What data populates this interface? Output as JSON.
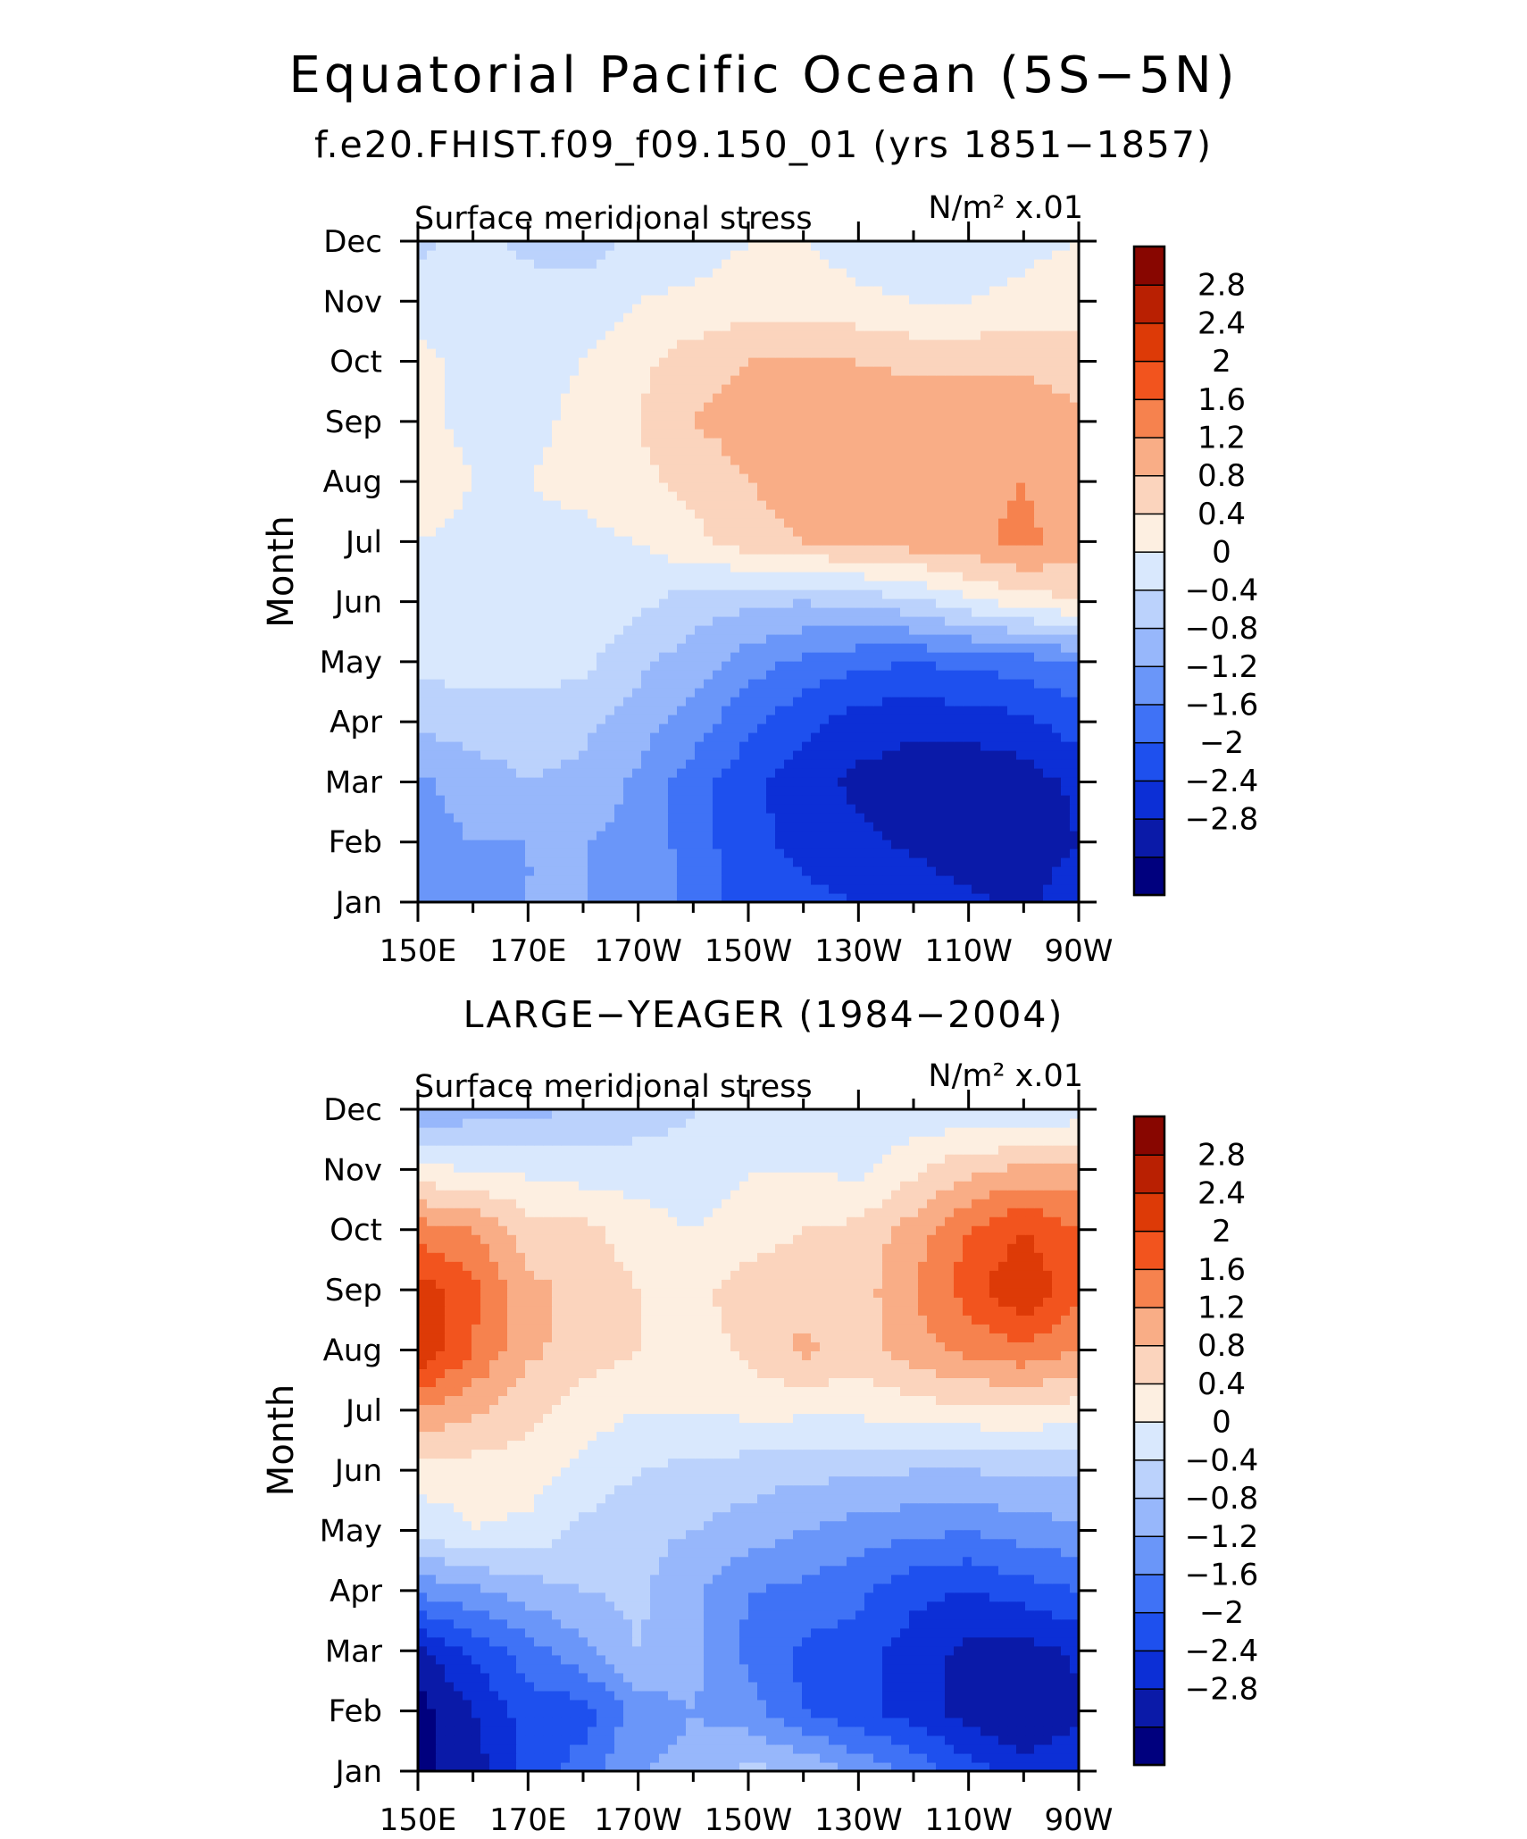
{
  "figure": {
    "title": "Equatorial Pacific Ocean (5S−5N)"
  },
  "colors": [
    "#00007e",
    "#0a1aa8",
    "#0c2fd6",
    "#1e50ee",
    "#3f72f6",
    "#6a96f9",
    "#97b7fb",
    "#bbd2fc",
    "#d9e8fd",
    "#fdefe1",
    "#fbd4bd",
    "#f9ad86",
    "#f6824e",
    "#f2541e",
    "#dd3a07",
    "#b92002",
    "#880600"
  ],
  "chart_data": [
    {
      "type": "heatmap",
      "title": "f.e20.FHIST.f09_f09.150_01 (yrs 1851−1857)",
      "left_label": "Surface meridional stress",
      "right_label": "N/m² x.01",
      "ylabel": "Month",
      "xlabel": "",
      "x_tick_labels": [
        "150E",
        "170E",
        "170W",
        "150W",
        "130W",
        "110W",
        "90W"
      ],
      "x": [
        150,
        160,
        170,
        180,
        190,
        200,
        210,
        220,
        230,
        240,
        250,
        260,
        270
      ],
      "y_tick_labels": [
        "Jan",
        "Feb",
        "Mar",
        "Apr",
        "May",
        "Jun",
        "Jul",
        "Aug",
        "Sep",
        "Oct",
        "Nov",
        "Dec"
      ],
      "levels": [
        -2.8,
        -2.4,
        -2,
        -1.6,
        -1.2,
        -0.8,
        -0.4,
        0,
        0.4,
        0.8,
        1.2,
        1.6,
        2,
        2.4,
        2.8
      ],
      "colorbar_labels": [
        "2.8",
        "2.4",
        "2",
        "1.6",
        "1.2",
        "0.8",
        "0.4",
        "0",
        "−0.4",
        "−0.8",
        "−1.2",
        "−1.6",
        "−2",
        "−2.4",
        "−2.8"
      ],
      "values": [
        [
          -1.0,
          -0.9,
          -0.8,
          -0.8,
          -0.9,
          -1.3,
          -1.8,
          -1.9,
          -2.0,
          -2.1,
          -2.3,
          -2.5,
          -2.1
        ],
        [
          -1.0,
          -0.8,
          -0.8,
          -0.8,
          -0.9,
          -1.4,
          -1.9,
          -2.1,
          -2.3,
          -2.5,
          -2.7,
          -2.7,
          -2.4
        ],
        [
          -0.9,
          -0.6,
          -0.4,
          -0.5,
          -0.9,
          -1.4,
          -1.9,
          -2.2,
          -2.5,
          -2.6,
          -2.8,
          -2.6,
          -2.3
        ],
        [
          -0.3,
          -0.2,
          -0.2,
          -0.3,
          -0.6,
          -1.0,
          -1.5,
          -1.9,
          -2.2,
          -2.3,
          -2.2,
          -2.1,
          -1.8
        ],
        [
          0.1,
          0.2,
          0.2,
          0.1,
          -0.3,
          -0.6,
          -1.0,
          -1.3,
          -1.5,
          -1.6,
          -1.5,
          -1.4,
          -1.2
        ],
        [
          0.3,
          0.3,
          0.3,
          0.3,
          0.1,
          -0.2,
          -0.3,
          -0.4,
          -0.3,
          -0.1,
          0.3,
          0.6,
          0.8
        ],
        [
          0.4,
          0.3,
          0.3,
          0.3,
          0.4,
          0.7,
          1.0,
          1.2,
          1.3,
          1.4,
          1.5,
          1.7,
          1.4
        ],
        [
          0.6,
          0.4,
          0.4,
          0.5,
          0.7,
          0.9,
          1.2,
          1.4,
          1.5,
          1.5,
          1.5,
          1.6,
          1.4
        ],
        [
          0.5,
          0.3,
          0.3,
          0.5,
          0.8,
          1.2,
          1.4,
          1.5,
          1.5,
          1.5,
          1.5,
          1.5,
          1.3
        ],
        [
          0.5,
          0.3,
          0.3,
          0.4,
          0.7,
          1.0,
          1.2,
          1.3,
          1.2,
          1.1,
          1.1,
          1.1,
          1.0
        ],
        [
          0.2,
          0.3,
          0.2,
          0.2,
          0.4,
          0.5,
          0.6,
          0.6,
          0.5,
          0.4,
          0.4,
          0.5,
          0.6
        ],
        [
          -0.1,
          0.1,
          -0.1,
          -0.2,
          0.1,
          0.2,
          0.4,
          0.4,
          0.2,
          0.1,
          0.2,
          0.3,
          0.4
        ]
      ]
    },
    {
      "type": "heatmap",
      "title": "LARGE−YEAGER (1984−2004)",
      "left_label": "Surface meridional stress",
      "right_label": "N/m² x.01",
      "ylabel": "Month",
      "xlabel": "",
      "x_tick_labels": [
        "150E",
        "170E",
        "170W",
        "150W",
        "130W",
        "110W",
        "90W"
      ],
      "x": [
        150,
        160,
        170,
        180,
        190,
        200,
        210,
        220,
        230,
        240,
        250,
        260,
        270
      ],
      "y_tick_labels": [
        "Jan",
        "Feb",
        "Mar",
        "Apr",
        "May",
        "Jun",
        "Jul",
        "Aug",
        "Sep",
        "Oct",
        "Nov",
        "Dec"
      ],
      "levels": [
        -2.8,
        -2.4,
        -2,
        -1.6,
        -1.2,
        -0.8,
        -0.4,
        0,
        0.4,
        0.8,
        1.2,
        1.6,
        2,
        2.4,
        2.8
      ],
      "colorbar_labels": [
        "2.8",
        "2.4",
        "2",
        "1.6",
        "1.2",
        "0.8",
        "0.4",
        "0",
        "−0.4",
        "−0.8",
        "−1.2",
        "−1.6",
        "−2",
        "−2.4",
        "−2.8"
      ],
      "values": [
        [
          -2.9,
          -2.6,
          -1.9,
          -1.4,
          -0.8,
          -0.7,
          -0.3,
          -0.4,
          -0.9,
          -1.3,
          -1.8,
          -2.2,
          -2.1
        ],
        [
          -3.0,
          -2.4,
          -1.8,
          -1.8,
          -1.0,
          -0.8,
          -1.0,
          -1.6,
          -1.9,
          -2.2,
          -2.6,
          -2.8,
          -2.5
        ],
        [
          -2.5,
          -1.9,
          -1.4,
          -0.9,
          -0.4,
          -0.7,
          -1.3,
          -1.7,
          -1.8,
          -2.2,
          -2.5,
          -2.6,
          -2.3
        ],
        [
          -1.1,
          -0.9,
          -0.6,
          -0.4,
          -0.3,
          -0.7,
          -1.2,
          -1.3,
          -1.5,
          -1.9,
          -2.0,
          -1.8,
          -1.6
        ],
        [
          0.1,
          0.4,
          0.3,
          -0.1,
          -0.3,
          -0.4,
          -0.6,
          -0.8,
          -1.0,
          -1.1,
          -1.2,
          -1.0,
          -0.9
        ],
        [
          0.6,
          0.6,
          0.6,
          0.3,
          0.0,
          -0.1,
          -0.2,
          -0.3,
          -0.3,
          -0.4,
          -0.4,
          -0.3,
          -0.3
        ],
        [
          1.6,
          1.3,
          0.9,
          0.6,
          0.4,
          0.4,
          0.5,
          0.5,
          0.5,
          0.6,
          0.7,
          0.7,
          0.6
        ],
        [
          2.8,
          2.0,
          1.3,
          1.0,
          0.8,
          0.6,
          0.9,
          1.3,
          1.0,
          1.4,
          1.7,
          1.9,
          1.6
        ],
        [
          2.6,
          2.1,
          1.3,
          1.1,
          0.8,
          0.7,
          1.0,
          1.0,
          1.0,
          1.6,
          2.2,
          2.8,
          2.1
        ],
        [
          1.8,
          1.6,
          1.0,
          0.9,
          0.6,
          0.4,
          0.6,
          0.8,
          0.9,
          1.4,
          2.0,
          2.4,
          2.0
        ],
        [
          0.5,
          0.4,
          0.3,
          0.2,
          0.2,
          0.1,
          0.4,
          0.4,
          0.3,
          0.7,
          1.1,
          1.3,
          1.3
        ],
        [
          -0.9,
          -0.6,
          -0.6,
          -0.3,
          -0.2,
          0.0,
          0.0,
          0.1,
          0.1,
          0.1,
          0.1,
          -0.1,
          0.2
        ]
      ]
    }
  ]
}
